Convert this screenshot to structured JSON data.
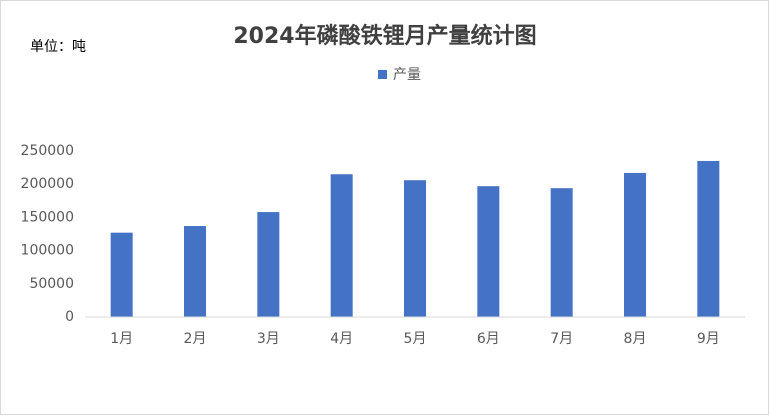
{
  "chart_data": {
    "type": "bar",
    "title": "2024年磷酸铁锂月产量统计图",
    "unit_label": "单位：吨",
    "categories": [
      "1月",
      "2月",
      "3月",
      "4月",
      "5月",
      "6月",
      "7月",
      "8月",
      "9月"
    ],
    "series": [
      {
        "name": "产量",
        "color": "#4472c4",
        "values": [
          127000,
          137000,
          158000,
          215000,
          206000,
          197000,
          194000,
          217000,
          235000
        ]
      }
    ],
    "ylim": [
      0,
      250000
    ],
    "yticks": [
      0,
      50000,
      100000,
      150000,
      200000,
      250000
    ],
    "grid": false,
    "legend": "top"
  }
}
